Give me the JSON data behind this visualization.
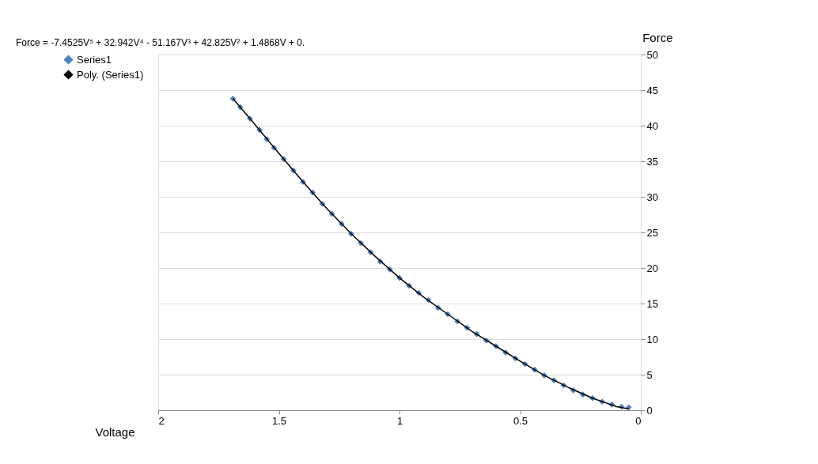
{
  "chart_data": {
    "type": "scatter",
    "xlabel": "Voltage",
    "ylabel": "Force",
    "annotations": [
      "Force = -7.4525V⁵ + 32.942V⁴ - 51.167V³ + 42.825V² + 1.4868V + 0."
    ],
    "series": [
      {
        "name": "Series1",
        "type": "scatter",
        "color": "#4f81bd",
        "marker": "diamond",
        "x": [
          1.69,
          1.66,
          1.62,
          1.58,
          1.55,
          1.52,
          1.48,
          1.44,
          1.4,
          1.36,
          1.32,
          1.28,
          1.24,
          1.2,
          1.16,
          1.12,
          1.08,
          1.04,
          1.0,
          0.96,
          0.92,
          0.88,
          0.84,
          0.8,
          0.76,
          0.72,
          0.68,
          0.64,
          0.6,
          0.56,
          0.52,
          0.48,
          0.44,
          0.4,
          0.36,
          0.32,
          0.28,
          0.24,
          0.2,
          0.16,
          0.12,
          0.08,
          0.05
        ],
        "values": [
          43.8,
          42.6,
          41.0,
          39.4,
          38.1,
          36.9,
          35.3,
          33.7,
          32.1,
          30.6,
          29.0,
          27.6,
          26.2,
          24.8,
          23.5,
          22.2,
          20.9,
          19.8,
          18.6,
          17.5,
          16.5,
          15.5,
          14.4,
          13.5,
          12.5,
          11.6,
          10.7,
          9.8,
          9.0,
          8.1,
          7.3,
          6.5,
          5.7,
          4.9,
          4.2,
          3.5,
          2.8,
          2.2,
          1.7,
          1.2,
          0.8,
          0.5,
          0.4
        ]
      },
      {
        "name": "Poly. (Series1)",
        "type": "line",
        "color": "#000000",
        "marker": "none",
        "line_style": "solid",
        "x": [
          1.69,
          1.6,
          1.5,
          1.4,
          1.3,
          1.2,
          1.1,
          1.0,
          0.9,
          0.8,
          0.7,
          0.6,
          0.5,
          0.4,
          0.3,
          0.2,
          0.1,
          0.05
        ],
        "values": [
          43.8,
          40.2,
          36.1,
          32.1,
          28.3,
          24.8,
          21.6,
          18.6,
          15.9,
          13.5,
          11.1,
          9.0,
          6.9,
          4.9,
          3.2,
          1.7,
          0.5,
          0.2
        ]
      }
    ],
    "xlim": [
      2,
      0
    ],
    "xticks": [
      2,
      1.5,
      1,
      0.5,
      0
    ],
    "ylim": [
      0,
      50
    ],
    "yticks": [
      0,
      5,
      10,
      15,
      20,
      25,
      30,
      35,
      40,
      45,
      50
    ],
    "grid": "y",
    "legend": "left"
  }
}
